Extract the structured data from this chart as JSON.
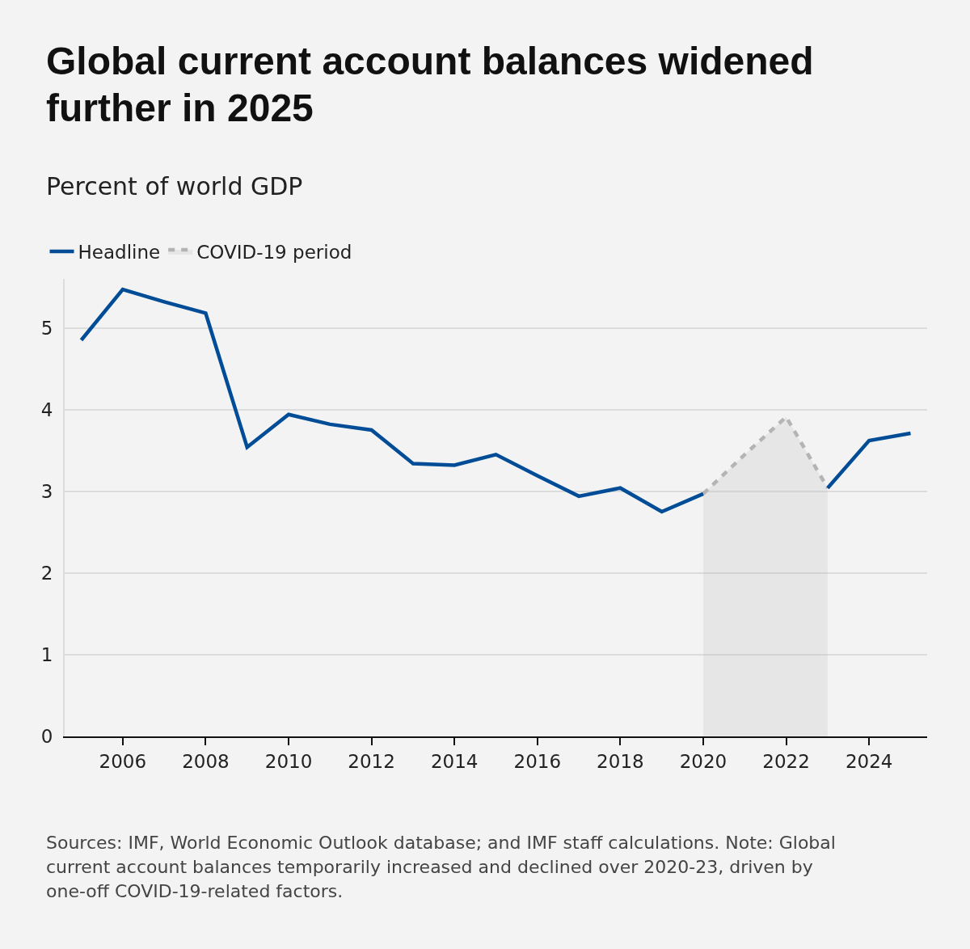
{
  "chart_data": {
    "type": "line",
    "title": "Global current account balances widened further in 2025",
    "subtitle": "Percent of world GDP",
    "annotations": [
      "Sources: IMF, World Economic Outlook database; and IMF staff calculations. Note: Global current account balances temporarily increased and declined over 2020-23, driven by one-off COVID-19-related factors."
    ],
    "x": [
      2005,
      2006,
      2007,
      2008,
      2009,
      2010,
      2011,
      2012,
      2013,
      2014,
      2015,
      2016,
      2017,
      2018,
      2019,
      2020,
      2021,
      2022,
      2023,
      2024,
      2025
    ],
    "series": [
      {
        "name": "Headline",
        "color": "#004c97",
        "line_style": "solid",
        "values": [
          4.85,
          5.47,
          5.32,
          5.18,
          3.54,
          3.94,
          3.82,
          3.75,
          3.34,
          3.32,
          3.45,
          3.19,
          2.94,
          3.04,
          2.75,
          2.97,
          null,
          null,
          3.04,
          3.62,
          3.71
        ]
      },
      {
        "name": "COVID-19 period",
        "type": "area",
        "color": "#b4b4b4",
        "line_style": "dashed",
        "x": [
          2020,
          2021,
          2022,
          2023
        ],
        "values": [
          2.97,
          3.45,
          3.91,
          3.04
        ]
      }
    ],
    "xlim": [
      2004.6,
      2025.4
    ],
    "xticks": [
      2006,
      2008,
      2010,
      2012,
      2014,
      2016,
      2018,
      2020,
      2022,
      2024
    ],
    "ylim": [
      0,
      5.6
    ],
    "yticks": [
      0,
      1,
      2,
      3,
      4,
      5
    ],
    "grid": "y",
    "legend": "top left",
    "marker": "none"
  }
}
